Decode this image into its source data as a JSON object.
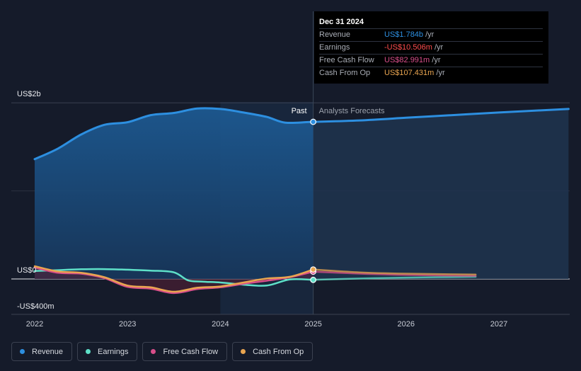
{
  "chart_data": {
    "type": "area",
    "x_ticks": [
      "2022",
      "2023",
      "2024",
      "2025",
      "2026",
      "2027"
    ],
    "y_labels": [
      "US$2b",
      "US$0",
      "-US$400m"
    ],
    "ylim": [
      -400,
      2000
    ],
    "y_unit": "US$m",
    "divider_x": 2025.0,
    "past_label": "Past",
    "forecast_label": "Analysts Forecasts",
    "grid": true,
    "legend_position": "bottom-left",
    "series": [
      {
        "name": "Revenue",
        "key": "revenue",
        "color": "#2d8fe0",
        "fill": true,
        "x": [
          2022.0,
          2022.25,
          2022.5,
          2022.75,
          2023.0,
          2023.25,
          2023.5,
          2023.75,
          2024.0,
          2024.25,
          2024.5,
          2024.7,
          2025.0,
          2025.5,
          2026.0,
          2026.5,
          2027.0,
          2027.75
        ],
        "y": [
          1360,
          1480,
          1640,
          1750,
          1780,
          1860,
          1885,
          1935,
          1930,
          1890,
          1840,
          1775,
          1784,
          1800,
          1830,
          1860,
          1890,
          1930
        ]
      },
      {
        "name": "Earnings",
        "key": "earnings",
        "color": "#5ee0c8",
        "fill": false,
        "x": [
          2022.0,
          2022.25,
          2022.5,
          2022.75,
          2023.0,
          2023.25,
          2023.5,
          2023.65,
          2023.8,
          2024.0,
          2024.25,
          2024.5,
          2024.75,
          2025.0,
          2025.5,
          2026.0,
          2026.75
        ],
        "y": [
          90,
          100,
          110,
          112,
          105,
          95,
          75,
          -15,
          -30,
          -40,
          -65,
          -75,
          -5,
          -10.506,
          5,
          15,
          25
        ]
      },
      {
        "name": "Free Cash Flow",
        "key": "fcf",
        "color": "#d84e8a",
        "fill": false,
        "x": [
          2022.0,
          2022.25,
          2022.5,
          2022.75,
          2023.0,
          2023.25,
          2023.5,
          2023.75,
          2024.0,
          2024.25,
          2024.5,
          2024.75,
          2025.0,
          2025.5,
          2026.0,
          2026.75
        ],
        "y": [
          130,
          70,
          60,
          10,
          -90,
          -110,
          -160,
          -115,
          -95,
          -55,
          -20,
          20,
          82.991,
          60,
          45,
          35
        ]
      },
      {
        "name": "Cash From Op",
        "key": "cfo",
        "color": "#e9a550",
        "fill": false,
        "x": [
          2022.0,
          2022.25,
          2022.5,
          2022.75,
          2023.0,
          2023.25,
          2023.5,
          2023.75,
          2024.0,
          2024.25,
          2024.5,
          2024.75,
          2025.0,
          2025.5,
          2026.0,
          2026.75
        ],
        "y": [
          145,
          85,
          70,
          20,
          -75,
          -95,
          -145,
          -100,
          -85,
          -40,
          5,
          25,
          107.431,
          75,
          60,
          50
        ]
      }
    ]
  },
  "tooltip": {
    "date": "Dec 31 2024",
    "rows": [
      {
        "label": "Revenue",
        "value": "US$1.784b",
        "unit": "/yr",
        "color": "#2d8fe0"
      },
      {
        "label": "Earnings",
        "value": "-US$10.506m",
        "unit": "/yr",
        "color": "#ff4d4d"
      },
      {
        "label": "Free Cash Flow",
        "value": "US$82.991m",
        "unit": "/yr",
        "color": "#d84e8a"
      },
      {
        "label": "Cash From Op",
        "value": "US$107.431m",
        "unit": "/yr",
        "color": "#e9a550"
      }
    ]
  },
  "legend": [
    {
      "label": "Revenue",
      "color": "#2d8fe0"
    },
    {
      "label": "Earnings",
      "color": "#5ee0c8"
    },
    {
      "label": "Free Cash Flow",
      "color": "#d84e8a"
    },
    {
      "label": "Cash From Op",
      "color": "#e9a550"
    }
  ]
}
